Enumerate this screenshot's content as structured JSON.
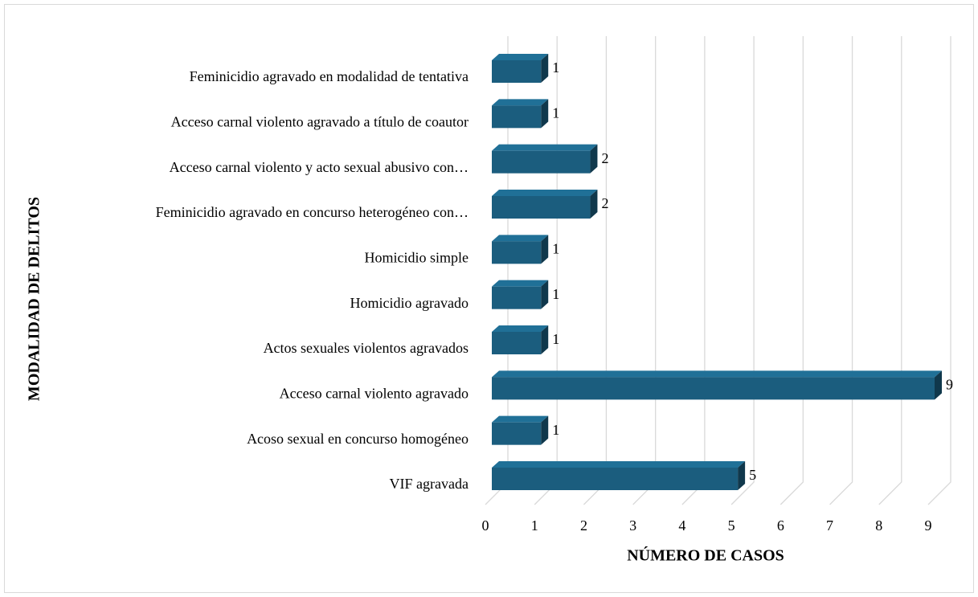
{
  "chart_data": {
    "type": "bar3d",
    "orientation": "horizontal",
    "x_label": "NÚMERO DE CASOS",
    "y_label": "MODALIDAD DE DELITOS",
    "categories": [
      "Feminicidio agravado en modalidad de tentativa",
      "Acceso carnal violento agravado a título de coautor",
      "Acceso carnal violento y acto sexual abusivo con…",
      "Feminicidio agravado en concurso heterogéneo con…",
      "Homicidio simple",
      "Homicidio agravado",
      "Actos sexuales violentos agravados",
      "Acceso carnal violento agravado",
      "Acoso sexual en concurso homogéneo",
      "VIF agravada"
    ],
    "values": [
      1,
      1,
      2,
      2,
      1,
      1,
      1,
      9,
      1,
      5
    ],
    "color": "#1b5d7e",
    "xlim": [
      0,
      9
    ],
    "xticks": [
      0,
      1,
      2,
      3,
      4,
      5,
      6,
      7,
      8,
      9
    ],
    "grid": true
  }
}
